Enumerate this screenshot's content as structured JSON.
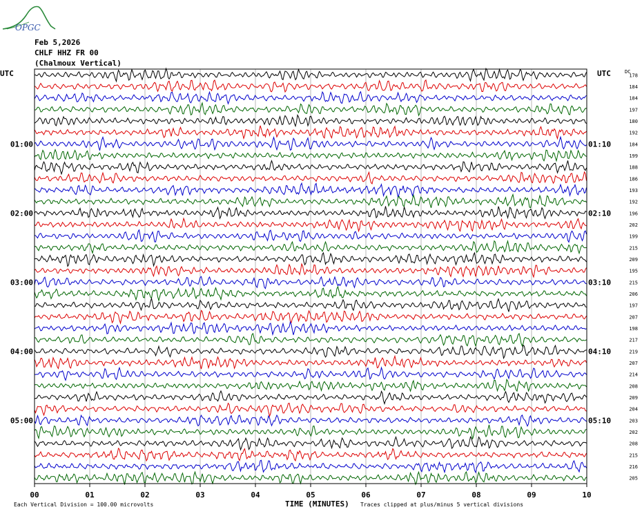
{
  "logo_text": "OPGC",
  "header": {
    "date": "Feb 5,2026",
    "station": "CHLF HHZ FR 00",
    "location": "(Chalmoux Vertical)"
  },
  "left_axis_title": "UTC",
  "right_axis_title": "UTC",
  "dc_title": "DC",
  "footer": {
    "scale_note": "Each Vertical Division =  100.00 microvolts",
    "x_title": "TIME (MINUTES)",
    "clip_note": "Traces clipped at plus/minus 5 vertical divisions"
  },
  "colors": {
    "black": "#000000",
    "red": "#dd0000",
    "blue": "#0000cc",
    "green": "#006600",
    "logo": "#2a8a3a",
    "logo_text": "#3355aa"
  },
  "chart_data": {
    "type": "line",
    "title": "CHLF HHZ FR 00 (Chalmoux Vertical)",
    "xlabel": "TIME (MINUTES)",
    "xlim": [
      0,
      10
    ],
    "x_ticks": [
      "00",
      "01",
      "02",
      "03",
      "04",
      "05",
      "06",
      "07",
      "08",
      "09",
      "10"
    ],
    "trace_color_cycle": [
      "black",
      "red",
      "blue",
      "green"
    ],
    "trace_count": 36,
    "left_time_labels": [
      {
        "trace": 6,
        "label": "01:00"
      },
      {
        "trace": 12,
        "label": "02:00"
      },
      {
        "trace": 18,
        "label": "03:00"
      },
      {
        "trace": 24,
        "label": "04:00"
      },
      {
        "trace": 30,
        "label": "05:00"
      }
    ],
    "right_time_labels": [
      {
        "trace": 6,
        "label": "01:10"
      },
      {
        "trace": 12,
        "label": "02:10"
      },
      {
        "trace": 18,
        "label": "03:10"
      },
      {
        "trace": 24,
        "label": "04:10"
      },
      {
        "trace": 30,
        "label": "05:10"
      }
    ],
    "dc_offsets": [
      178,
      184,
      184,
      197,
      180,
      192,
      184,
      199,
      188,
      186,
      193,
      192,
      196,
      202,
      199,
      215,
      209,
      195,
      215,
      206,
      197,
      207,
      198,
      217,
      219,
      207,
      214,
      208,
      209,
      204,
      203,
      202,
      208,
      215,
      216,
      205
    ]
  }
}
